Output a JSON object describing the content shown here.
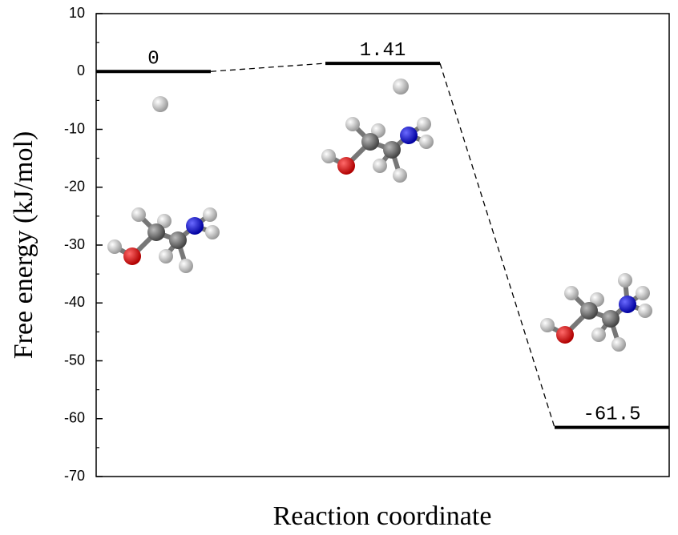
{
  "chart_data": {
    "type": "energy-profile",
    "ylabel": "Free energy (kJ/mol)",
    "xlabel": "Reaction coordinate",
    "values": [
      0,
      1.41,
      -61.5
    ],
    "color": "#000000",
    "ylim": [
      -70,
      10
    ],
    "yticks": [
      -70,
      -60,
      -50,
      -40,
      -30,
      -20,
      -10,
      0,
      10
    ],
    "minor_yticks": [
      -65,
      -55,
      -45,
      -35,
      -25,
      -15,
      -5,
      5
    ]
  }
}
